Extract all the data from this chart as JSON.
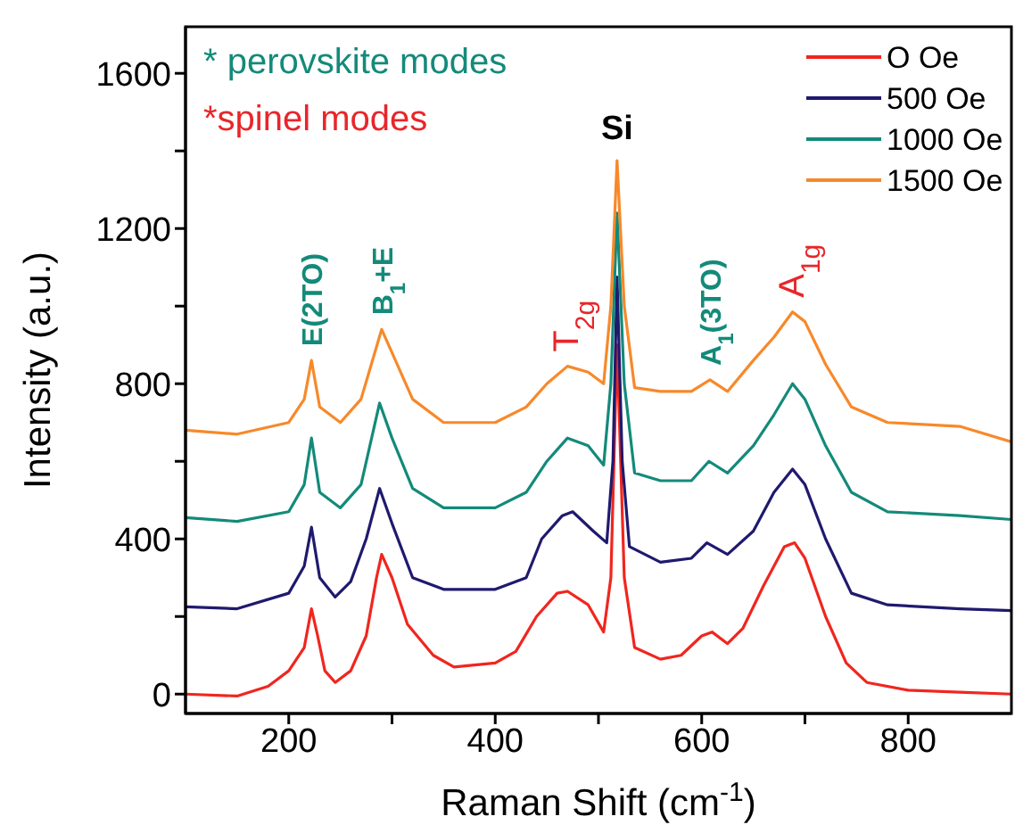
{
  "chart_data": {
    "type": "line",
    "xlabel": "Raman Shift (cm$^{-1}$)",
    "ylabel": "Intensity (a.u.)",
    "xlim": [
      100,
      900
    ],
    "xticks": [
      200,
      {
        "value": 300,
        "label": null
      },
      400,
      {
        "value": 500,
        "label": null
      },
      600,
      {
        "value": 700,
        "label": null
      },
      800
    ],
    "ylim": [
      -50,
      1720
    ],
    "yticks": [
      0,
      {
        "value": 200,
        "label": null
      },
      400,
      {
        "value": 600,
        "label": null
      },
      800,
      {
        "value": 1000,
        "label": null
      },
      1200,
      {
        "value": 1400,
        "label": null
      },
      1600
    ],
    "grid": false,
    "legend": "top right",
    "marker": "none",
    "line_style": "solid",
    "series": [
      {
        "name": "O Oe",
        "color": "#f0261f",
        "x": [
          100,
          150,
          180,
          200,
          215,
          222,
          228,
          235,
          245,
          260,
          275,
          285,
          290,
          300,
          315,
          340,
          360,
          400,
          420,
          440,
          460,
          470,
          490,
          505,
          512,
          518,
          525,
          535,
          560,
          580,
          600,
          610,
          625,
          640,
          660,
          680,
          690,
          700,
          720,
          740,
          760,
          800,
          850,
          900
        ],
        "values": [
          0,
          -5,
          20,
          60,
          120,
          220,
          150,
          60,
          30,
          60,
          150,
          300,
          360,
          300,
          180,
          100,
          70,
          80,
          110,
          200,
          260,
          265,
          230,
          160,
          300,
          900,
          300,
          120,
          90,
          100,
          150,
          160,
          130,
          170,
          280,
          380,
          390,
          350,
          200,
          80,
          30,
          10,
          5,
          0
        ]
      },
      {
        "name": "500 Oe",
        "color": "#1f1a6e",
        "x": [
          100,
          150,
          200,
          215,
          222,
          230,
          245,
          260,
          275,
          288,
          300,
          320,
          350,
          400,
          430,
          445,
          465,
          475,
          495,
          508,
          514,
          518,
          523,
          530,
          560,
          590,
          605,
          625,
          650,
          670,
          688,
          700,
          720,
          745,
          780,
          850,
          900
        ],
        "values": [
          225,
          220,
          260,
          330,
          430,
          300,
          250,
          290,
          400,
          530,
          440,
          300,
          270,
          270,
          300,
          400,
          460,
          470,
          420,
          390,
          600,
          1075,
          600,
          380,
          340,
          350,
          390,
          360,
          420,
          520,
          580,
          540,
          400,
          260,
          230,
          220,
          215
        ]
      },
      {
        "name": "1000 Oe",
        "color": "#138a7a",
        "x": [
          100,
          150,
          200,
          215,
          222,
          230,
          250,
          270,
          288,
          300,
          320,
          350,
          400,
          430,
          450,
          470,
          490,
          505,
          512,
          518,
          525,
          535,
          560,
          590,
          607,
          625,
          650,
          670,
          688,
          700,
          720,
          745,
          780,
          850,
          900
        ],
        "values": [
          455,
          445,
          470,
          540,
          660,
          520,
          480,
          540,
          750,
          660,
          530,
          480,
          480,
          520,
          600,
          660,
          640,
          590,
          800,
          1240,
          800,
          570,
          550,
          550,
          600,
          570,
          640,
          720,
          800,
          760,
          640,
          520,
          470,
          460,
          450
        ]
      },
      {
        "name": "1500 Oe",
        "color": "#f7892a",
        "x": [
          100,
          150,
          200,
          215,
          222,
          230,
          250,
          270,
          290,
          300,
          320,
          350,
          400,
          430,
          450,
          470,
          490,
          505,
          512,
          518,
          525,
          535,
          560,
          590,
          608,
          625,
          650,
          670,
          688,
          700,
          720,
          745,
          780,
          850,
          900
        ],
        "values": [
          680,
          670,
          700,
          760,
          860,
          740,
          700,
          760,
          940,
          880,
          760,
          700,
          700,
          740,
          800,
          845,
          830,
          800,
          1000,
          1375,
          1000,
          790,
          780,
          780,
          810,
          780,
          860,
          920,
          985,
          960,
          850,
          740,
          700,
          690,
          650
        ]
      }
    ],
    "annotations": [
      "* perovskite modes",
      "*spinel modes",
      {
        "text": "E(2TO)",
        "x": 222,
        "y": 860
      },
      {
        "text": "B$_{1}$+E",
        "x": 290,
        "y": 940
      },
      {
        "text": "T$_{2g}$",
        "x": 470,
        "y": 845
      },
      {
        "text": "Si",
        "x": 518,
        "y": 1375
      },
      {
        "text": "A$_{1}$(3TO)",
        "x": 608,
        "y": 810
      },
      {
        "text": "A$_{1g}$",
        "x": 688,
        "y": 985
      }
    ]
  }
}
